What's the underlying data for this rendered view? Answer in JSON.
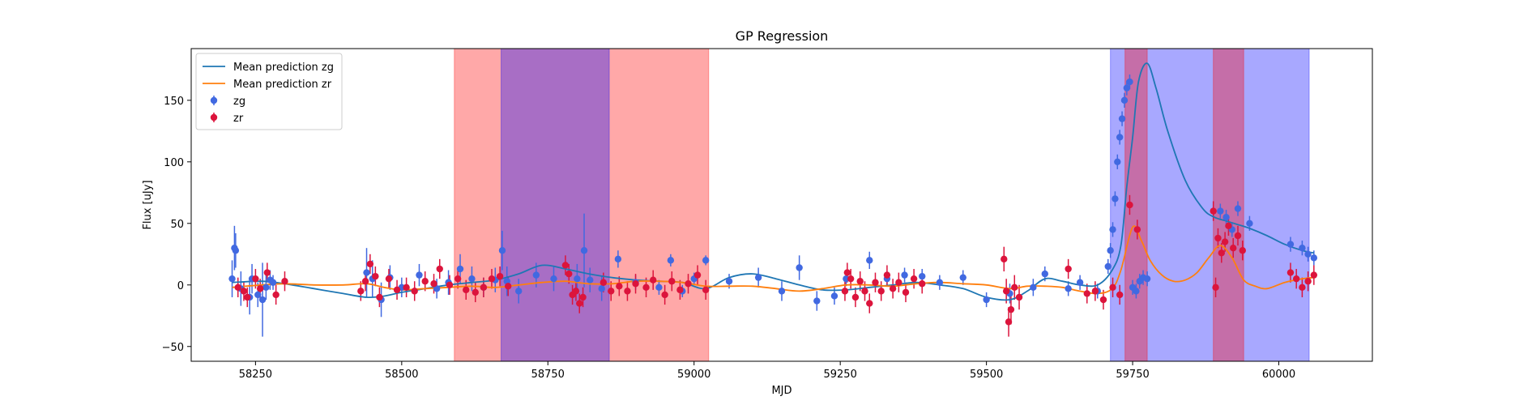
{
  "chart_data": {
    "type": "line",
    "title": "GP Regression",
    "xlabel": "MJD",
    "ylabel": "Flux [uJy]",
    "xlim": [
      58140,
      60160
    ],
    "ylim": [
      -62,
      192
    ],
    "x_ticks": [
      58250,
      58500,
      58750,
      59000,
      59250,
      59500,
      59750,
      60000
    ],
    "y_ticks": [
      -50,
      0,
      50,
      100,
      150
    ],
    "legend_position": "top-left",
    "grid": false,
    "shaded_regions": [
      {
        "band": "zr",
        "color": "#ff0000",
        "alpha": 0.34,
        "x0": 58590,
        "x1": 59025
      },
      {
        "band": "zg",
        "color": "#0000ff",
        "alpha": 0.34,
        "x0": 58670,
        "x1": 58855
      },
      {
        "band": "zg",
        "color": "#0000ff",
        "alpha": 0.34,
        "x0": 59712,
        "x1": 60052
      },
      {
        "band": "zr",
        "color": "#ff0000",
        "alpha": 0.34,
        "x0": 59737,
        "x1": 59775
      },
      {
        "band": "zr",
        "color": "#ff0000",
        "alpha": 0.34,
        "x0": 59888,
        "x1": 59940
      }
    ],
    "series": [
      {
        "name": "Mean prediction zg",
        "kind": "line",
        "color": "#1f77b4",
        "x": [
          58210,
          58260,
          58300,
          58350,
          58400,
          58440,
          58470,
          58500,
          58540,
          58580,
          58620,
          58660,
          58700,
          58740,
          58780,
          58820,
          58860,
          58900,
          58940,
          58980,
          59020,
          59060,
          59100,
          59140,
          59180,
          59220,
          59260,
          59300,
          59340,
          59380,
          59420,
          59460,
          59500,
          59540,
          59570,
          59600,
          59630,
          59660,
          59690,
          59715,
          59730,
          59740,
          59750,
          59760,
          59775,
          59790,
          59810,
          59840,
          59870,
          59890,
          59910,
          59930,
          59950,
          59980,
          60010,
          60040,
          60060
        ],
        "y": [
          2,
          3,
          1,
          -3,
          -7,
          -10,
          -9,
          -6,
          -3,
          0,
          2,
          4,
          9,
          16,
          13,
          9,
          6,
          4,
          3,
          2,
          -3,
          6,
          9,
          5,
          0,
          -4,
          -4,
          -2,
          0,
          2,
          0,
          -3,
          -10,
          -12,
          -5,
          5,
          3,
          0,
          0,
          12,
          32,
          80,
          120,
          165,
          180,
          160,
          125,
          85,
          62,
          55,
          52,
          49,
          46,
          40,
          33,
          28,
          26
        ]
      },
      {
        "name": "Mean prediction zr",
        "kind": "line",
        "color": "#ff7f0e",
        "x": [
          58210,
          58260,
          58300,
          58350,
          58400,
          58440,
          58470,
          58500,
          58540,
          58580,
          58620,
          58660,
          58700,
          58740,
          58780,
          58820,
          58860,
          58900,
          58940,
          58980,
          59020,
          59060,
          59100,
          59140,
          59180,
          59220,
          59260,
          59300,
          59340,
          59380,
          59420,
          59460,
          59500,
          59540,
          59570,
          59600,
          59630,
          59660,
          59690,
          59715,
          59730,
          59750,
          59765,
          59780,
          59800,
          59820,
          59840,
          59860,
          59880,
          59900,
          59920,
          59940,
          59960,
          59980,
          60010,
          60040,
          60060
        ],
        "y": [
          -2,
          0,
          1,
          0,
          0,
          1,
          -2,
          -4,
          -3,
          -2,
          -1,
          -2,
          0,
          2,
          3,
          1,
          1,
          3,
          3,
          2,
          -1,
          -1,
          -1,
          -3,
          -5,
          -3,
          0,
          0,
          -1,
          1,
          2,
          1,
          0,
          -3,
          -1,
          -1,
          -2,
          -5,
          -7,
          -3,
          12,
          47,
          36,
          20,
          8,
          3,
          4,
          10,
          22,
          32,
          22,
          4,
          -1,
          -3,
          2,
          5,
          6
        ]
      },
      {
        "name": "zg",
        "kind": "scatter",
        "color": "#4169e1",
        "x": [
          58210,
          58214,
          58216,
          58225,
          58240,
          58244,
          58254,
          58262,
          58268,
          58275,
          58280,
          58440,
          58450,
          58465,
          58480,
          58500,
          58530,
          58560,
          58580,
          58600,
          58620,
          58640,
          58660,
          58672,
          58680,
          58700,
          58730,
          58760,
          58800,
          58812,
          58822,
          58842,
          58870,
          58900,
          58940,
          58960,
          58980,
          59000,
          59020,
          59060,
          59110,
          59150,
          59180,
          59210,
          59240,
          59260,
          59300,
          59330,
          59360,
          59390,
          59420,
          59460,
          59500,
          59540,
          59580,
          59600,
          59640,
          59660,
          59690,
          59708,
          59712,
          59716,
          59720,
          59724,
          59728,
          59732,
          59736,
          59740,
          59745,
          59750,
          59756,
          59762,
          59768,
          59775,
          59900,
          59910,
          59920,
          59930,
          59950,
          60020,
          60040,
          60050,
          60060
        ],
        "y": [
          5,
          30,
          28,
          -3,
          -10,
          5,
          -8,
          -12,
          -2,
          4,
          2,
          10,
          5,
          -12,
          6,
          -2,
          8,
          -3,
          2,
          13,
          5,
          -2,
          4,
          28,
          3,
          -5,
          8,
          5,
          5,
          28,
          4,
          -3,
          21,
          2,
          -2,
          20,
          -5,
          5,
          20,
          3,
          6,
          -5,
          14,
          -13,
          -9,
          5,
          20,
          5,
          8,
          7,
          2,
          6,
          -12,
          -7,
          -2,
          9,
          -3,
          2,
          -5,
          15,
          28,
          45,
          70,
          100,
          120,
          135,
          150,
          160,
          165,
          -2,
          -5,
          3,
          6,
          5,
          60,
          55,
          45,
          62,
          50,
          33,
          30,
          25,
          22
        ],
        "err": [
          15,
          18,
          14,
          14,
          14,
          12,
          10,
          30,
          10,
          8,
          6,
          20,
          15,
          14,
          10,
          8,
          9,
          8,
          10,
          12,
          10,
          8,
          10,
          16,
          12,
          10,
          10,
          10,
          12,
          30,
          10,
          10,
          7,
          6,
          6,
          5,
          5,
          5,
          4,
          6,
          8,
          8,
          10,
          8,
          7,
          6,
          7,
          6,
          6,
          6,
          6,
          6,
          6,
          8,
          7,
          6,
          6,
          6,
          6,
          6,
          6,
          6,
          6,
          6,
          6,
          6,
          6,
          6,
          6,
          6,
          6,
          6,
          6,
          6,
          6,
          6,
          6,
          6,
          6,
          6,
          6,
          6,
          6
        ]
      },
      {
        "name": "zr",
        "kind": "scatter",
        "color": "#dc143c",
        "x": [
          58220,
          58230,
          58236,
          58250,
          58258,
          58270,
          58285,
          58300,
          58430,
          58438,
          58446,
          58455,
          58462,
          58478,
          58492,
          58508,
          58522,
          58540,
          58555,
          58565,
          58582,
          58596,
          58610,
          58626,
          58640,
          58654,
          58668,
          58682,
          58780,
          58786,
          58792,
          58798,
          58804,
          58810,
          58845,
          58858,
          58872,
          58886,
          58900,
          58918,
          58930,
          58950,
          58962,
          58976,
          58990,
          59006,
          59020,
          59258,
          59262,
          59268,
          59276,
          59284,
          59292,
          59300,
          59310,
          59320,
          59330,
          59340,
          59350,
          59362,
          59376,
          59390,
          59530,
          59534,
          59538,
          59542,
          59548,
          59556,
          59640,
          59672,
          59686,
          59700,
          59716,
          59728,
          59745,
          59758,
          59888,
          59892,
          59896,
          59902,
          59908,
          59914,
          59922,
          59930,
          59938,
          60020,
          60030,
          60040,
          60050,
          60060
        ],
        "y": [
          -2,
          -5,
          -10,
          5,
          -3,
          10,
          -8,
          3,
          -5,
          3,
          17,
          7,
          -10,
          5,
          -4,
          -2,
          -5,
          3,
          1,
          13,
          0,
          5,
          -4,
          -6,
          -2,
          5,
          7,
          -1,
          16,
          9,
          -8,
          -5,
          -15,
          -10,
          2,
          -5,
          -1,
          -5,
          1,
          -2,
          4,
          -8,
          3,
          -4,
          1,
          8,
          -4,
          -5,
          10,
          5,
          -10,
          3,
          -5,
          -15,
          2,
          -5,
          8,
          -3,
          2,
          -6,
          5,
          1,
          21,
          -5,
          -30,
          -20,
          -2,
          -10,
          13,
          -7,
          -5,
          -12,
          -2,
          -8,
          65,
          45,
          60,
          -2,
          38,
          26,
          35,
          48,
          30,
          40,
          28,
          10,
          5,
          -2,
          3,
          8
        ],
        "err": [
          8,
          8,
          8,
          8,
          8,
          8,
          8,
          8,
          8,
          8,
          8,
          8,
          8,
          8,
          8,
          8,
          8,
          8,
          8,
          8,
          8,
          8,
          8,
          8,
          8,
          8,
          8,
          8,
          8,
          8,
          8,
          8,
          8,
          8,
          8,
          8,
          8,
          8,
          8,
          8,
          8,
          8,
          8,
          8,
          8,
          8,
          8,
          8,
          8,
          8,
          8,
          8,
          8,
          8,
          8,
          8,
          8,
          8,
          8,
          8,
          8,
          8,
          10,
          10,
          12,
          12,
          10,
          10,
          8,
          8,
          8,
          8,
          8,
          8,
          8,
          8,
          8,
          8,
          8,
          8,
          8,
          8,
          8,
          8,
          8,
          8,
          8,
          8,
          8,
          8
        ]
      }
    ]
  }
}
